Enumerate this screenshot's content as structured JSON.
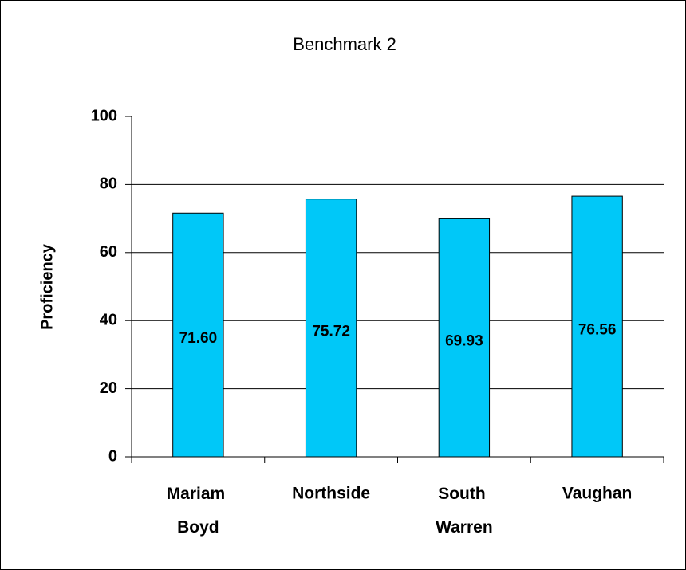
{
  "chart_data": {
    "type": "bar",
    "title": "Benchmark 2",
    "y_label": "Proficiency",
    "categories": [
      "Mariam Boyd",
      "Northside",
      "South Warren",
      "Vaughan"
    ],
    "values": [
      71.6,
      75.72,
      69.93,
      76.56
    ],
    "value_labels": [
      "71.60",
      "75.72",
      "69.93",
      "76.56"
    ],
    "color": "#00c8f8",
    "ylim": [
      0,
      100
    ],
    "yticks": [
      0,
      20,
      40,
      60,
      80,
      100
    ],
    "grid": true
  }
}
